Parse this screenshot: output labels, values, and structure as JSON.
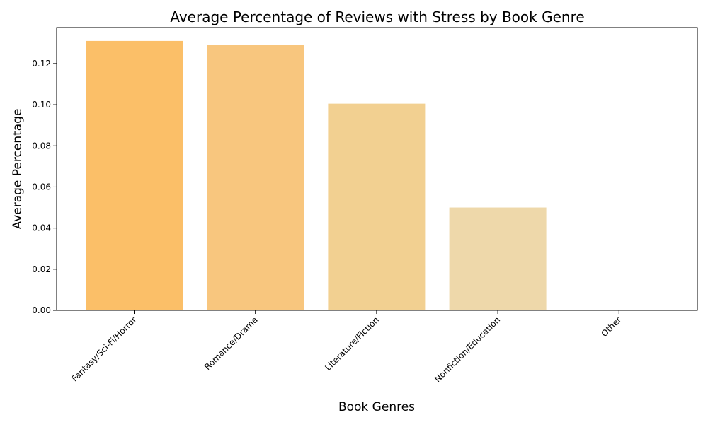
{
  "chart_data": {
    "type": "bar",
    "title": "Average Percentage of Reviews with Stress by Book Genre",
    "xlabel": "Book Genres",
    "ylabel": "Average Percentage",
    "categories": [
      "Fantasy/Sci-Fi/Horror",
      "Romance/Drama",
      "Literature/Fiction",
      "Nonfiction/Education",
      "Other"
    ],
    "values": [
      0.131,
      0.129,
      0.1005,
      0.05,
      0.0
    ],
    "bar_colors": [
      "#fbbf68",
      "#f8c67e",
      "#f2d091",
      "#eed8aa",
      "#eadcc0"
    ],
    "ylim": [
      0,
      0.1375
    ],
    "yticks": [
      0.0,
      0.02,
      0.04,
      0.06,
      0.08,
      0.1,
      0.12
    ],
    "ytick_labels": [
      "0.00",
      "0.02",
      "0.04",
      "0.06",
      "0.08",
      "0.10",
      "0.12"
    ],
    "grid": false,
    "legend": "none"
  }
}
